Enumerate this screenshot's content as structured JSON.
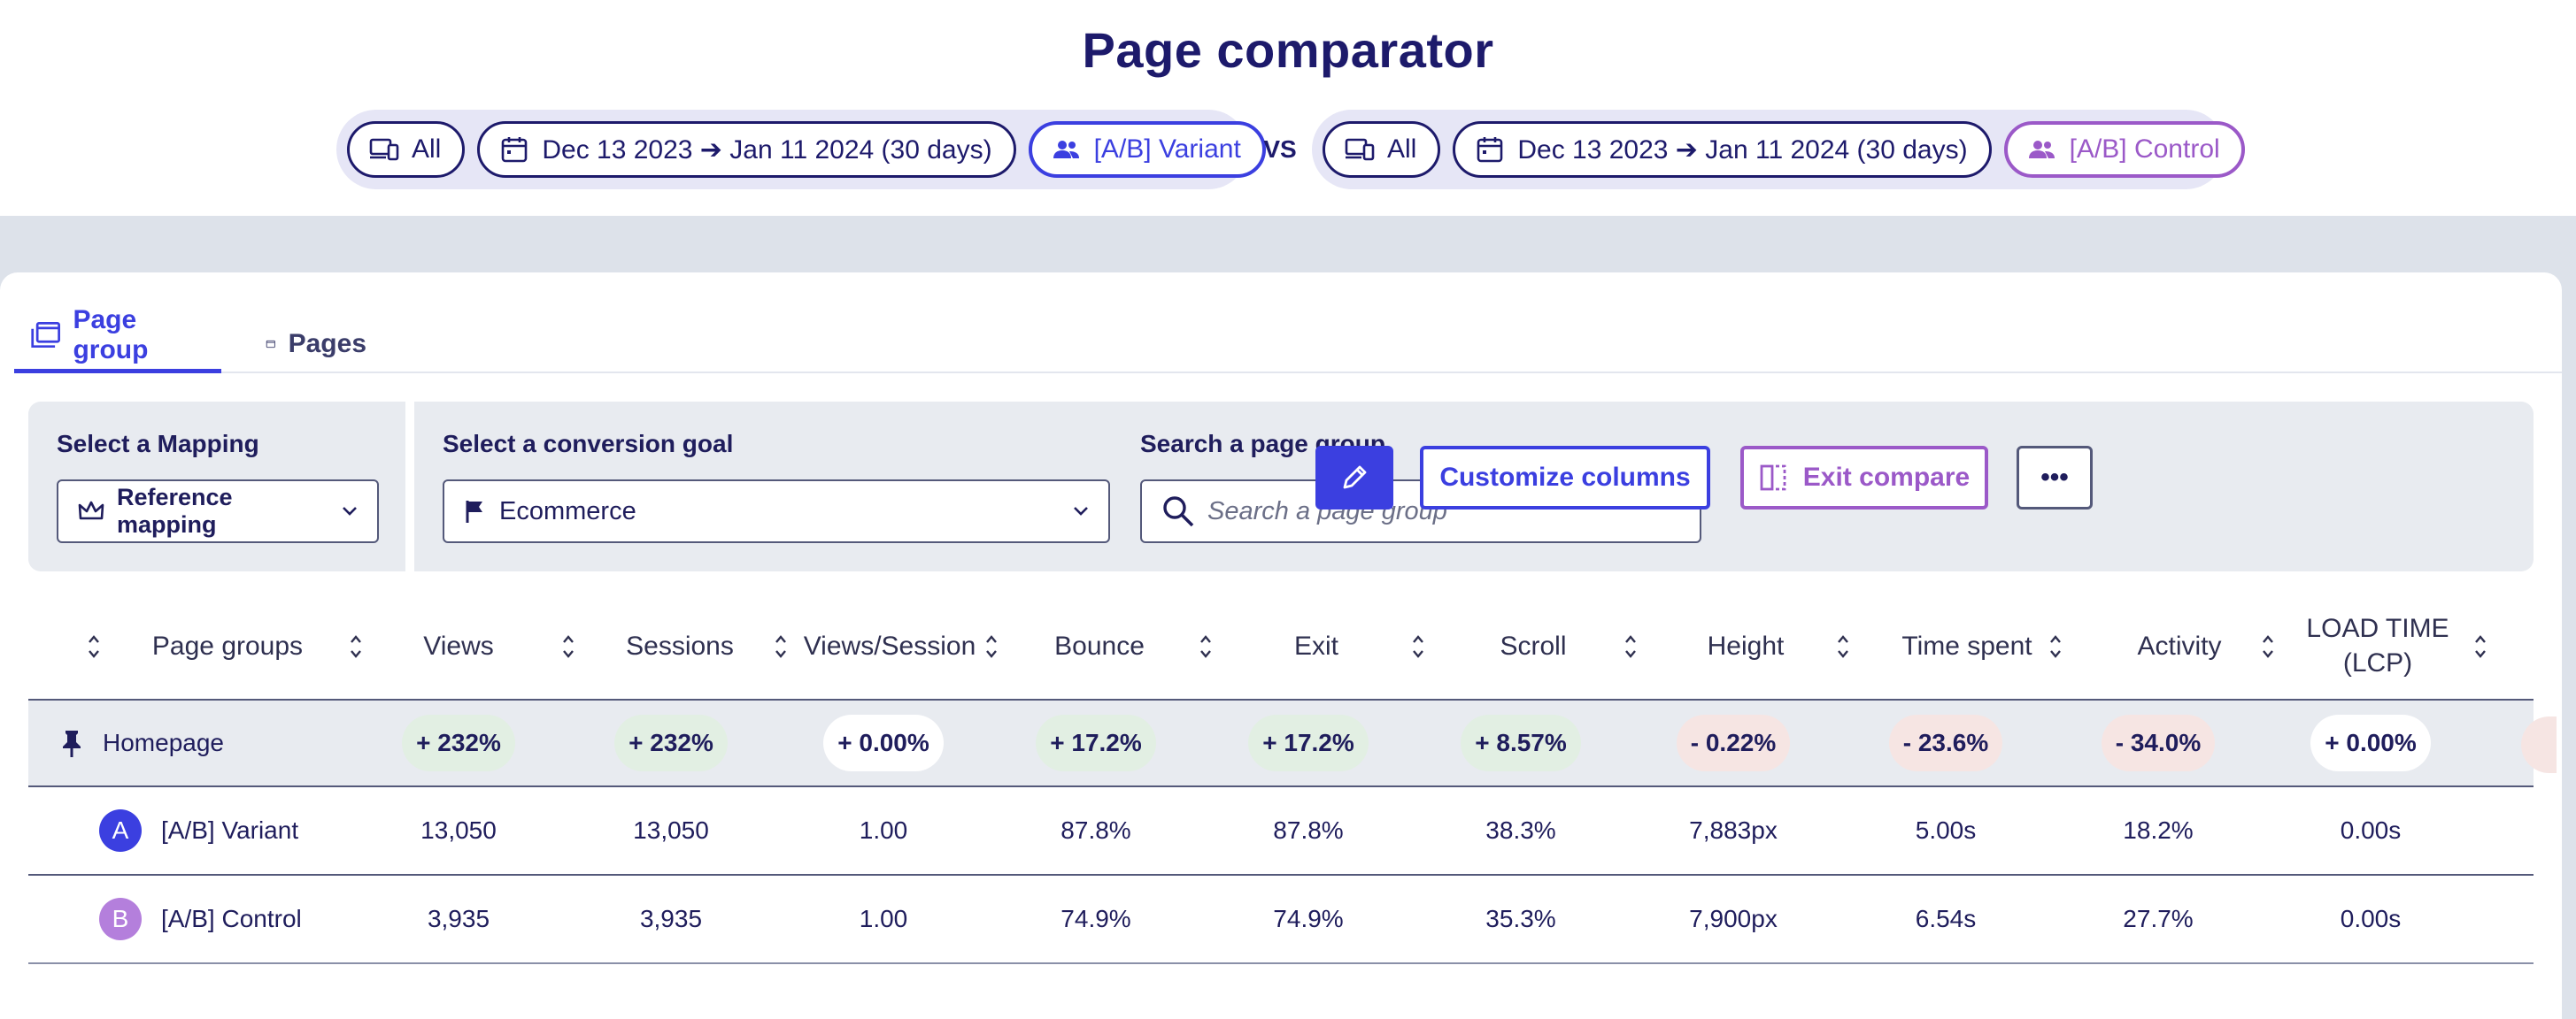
{
  "header": {
    "title": "Page comparator",
    "vs": "VS",
    "left": {
      "device": "All",
      "date_range": "Dec 13 2023 ➔ Jan 11 2024 (30 days)",
      "segment": "[A/B] Variant"
    },
    "right": {
      "device": "All",
      "date_range": "Dec 13 2023 ➔ Jan 11 2024 (30 days)",
      "segment": "[A/B] Control"
    }
  },
  "tabs": [
    {
      "label": "Page group",
      "active": true,
      "icon": "page-group-icon"
    },
    {
      "label": "Pages",
      "active": false,
      "icon": "window-icon"
    }
  ],
  "filters": {
    "mapping_label": "Select a Mapping",
    "mapping_value": "Reference mapping",
    "goal_label": "Select a conversion goal",
    "goal_value": "Ecommerce",
    "search_label": "Search a page group",
    "search_placeholder": "Search a page group",
    "customize_label": "Customize columns",
    "exit_compare_label": "Exit compare",
    "more_label": "•••"
  },
  "colors": {
    "accent": "#3b3fe0",
    "control": "#9b59c8",
    "positive_bg": "#e2efe3",
    "negative_bg": "#f6e5e3",
    "heading": "#1d1a6b"
  },
  "table": {
    "columns": [
      "Page groups",
      "Views",
      "Sessions",
      "Views/Session",
      "Bounce",
      "Exit",
      "Scroll",
      "Height",
      "Time spent",
      "Activity",
      "LOAD TIME (LCP)"
    ],
    "homepage": {
      "name": "Homepage",
      "values": [
        "+ 232%",
        "+ 232%",
        "+ 0.00%",
        "+ 17.2%",
        "+ 17.2%",
        "+ 8.57%",
        "- 0.22%",
        "- 23.6%",
        "- 34.0%",
        "+ 0.00%"
      ],
      "tones": [
        "pos",
        "pos",
        "neu",
        "pos",
        "pos",
        "pos",
        "neg",
        "neg",
        "neg",
        "neu"
      ]
    },
    "rows": [
      {
        "badge": "A",
        "name": "[A/B] Variant",
        "values": [
          "13,050",
          "13,050",
          "1.00",
          "87.8%",
          "87.8%",
          "38.3%",
          "7,883px",
          "5.00s",
          "18.2%",
          "0.00s"
        ]
      },
      {
        "badge": "B",
        "name": "[A/B] Control",
        "values": [
          "3,935",
          "3,935",
          "1.00",
          "74.9%",
          "74.9%",
          "35.3%",
          "7,900px",
          "6.54s",
          "27.7%",
          "0.00s"
        ]
      }
    ]
  }
}
